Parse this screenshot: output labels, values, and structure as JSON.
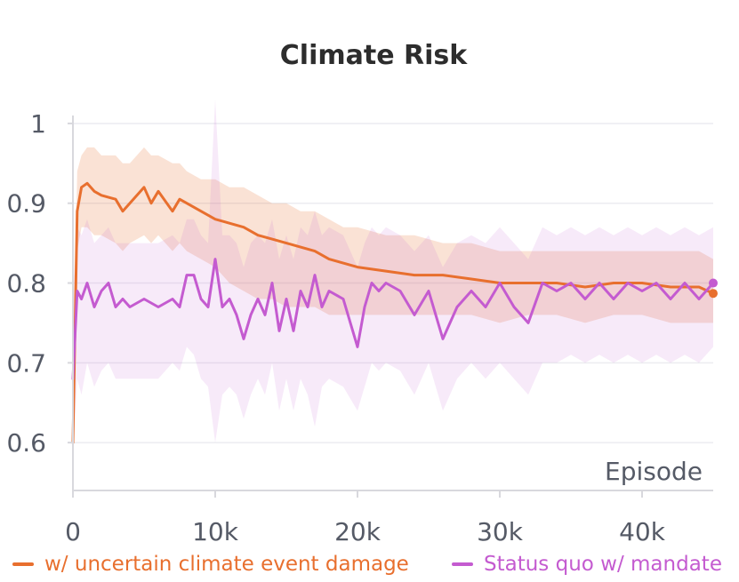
{
  "colors": {
    "series1": "#e86f2e",
    "series2": "#c45bd0",
    "grid": "#ececf0",
    "axis": "#d8d8dd"
  },
  "chart_data": {
    "type": "line",
    "title": "Climate Risk",
    "xlabel": "Episode",
    "ylabel": "",
    "xlim": [
      0,
      45000
    ],
    "ylim": [
      0.54,
      1.03
    ],
    "x_ticks": [
      0,
      10000,
      20000,
      30000,
      40000
    ],
    "x_tick_labels": [
      "0",
      "10k",
      "20k",
      "30k",
      "40k"
    ],
    "y_ticks": [
      0.6,
      0.7,
      0.8,
      0.9,
      1
    ],
    "y_tick_labels": [
      "0.6",
      "0.7",
      "0.8",
      "0.9",
      "1"
    ],
    "grid": true,
    "legend_position": "bottom",
    "series": [
      {
        "name": "w/ uncertain climate event damage",
        "color": "#e86f2e",
        "x": [
          0,
          300,
          600,
          1000,
          1500,
          2000,
          3000,
          3500,
          4000,
          5000,
          5500,
          6000,
          7000,
          7500,
          8000,
          9000,
          10000,
          11000,
          12000,
          13000,
          14000,
          15000,
          16000,
          17000,
          18000,
          19000,
          20000,
          22000,
          24000,
          26000,
          28000,
          30000,
          32000,
          34000,
          36000,
          38000,
          40000,
          42000,
          44000,
          45000
        ],
        "y": [
          0.6,
          0.89,
          0.92,
          0.925,
          0.915,
          0.91,
          0.905,
          0.89,
          0.9,
          0.92,
          0.9,
          0.915,
          0.89,
          0.905,
          0.9,
          0.89,
          0.88,
          0.875,
          0.87,
          0.86,
          0.855,
          0.85,
          0.845,
          0.84,
          0.83,
          0.825,
          0.82,
          0.815,
          0.81,
          0.81,
          0.805,
          0.8,
          0.8,
          0.8,
          0.795,
          0.8,
          0.8,
          0.795,
          0.795,
          0.787
        ],
        "band_lower": [
          0.56,
          0.84,
          0.87,
          0.87,
          0.86,
          0.86,
          0.85,
          0.84,
          0.85,
          0.86,
          0.85,
          0.86,
          0.84,
          0.85,
          0.84,
          0.83,
          0.82,
          0.8,
          0.79,
          0.78,
          0.78,
          0.77,
          0.77,
          0.77,
          0.76,
          0.76,
          0.76,
          0.76,
          0.76,
          0.76,
          0.76,
          0.75,
          0.76,
          0.76,
          0.75,
          0.76,
          0.76,
          0.75,
          0.75,
          0.75
        ],
        "band_upper": [
          0.67,
          0.94,
          0.96,
          0.97,
          0.97,
          0.96,
          0.96,
          0.95,
          0.95,
          0.97,
          0.96,
          0.96,
          0.95,
          0.95,
          0.94,
          0.93,
          0.93,
          0.92,
          0.92,
          0.91,
          0.9,
          0.9,
          0.89,
          0.89,
          0.88,
          0.87,
          0.87,
          0.86,
          0.86,
          0.85,
          0.85,
          0.84,
          0.84,
          0.84,
          0.84,
          0.84,
          0.84,
          0.84,
          0.84,
          0.83
        ]
      },
      {
        "name": "Status quo w/ mandate",
        "color": "#c45bd0",
        "x": [
          0,
          300,
          600,
          1000,
          1500,
          2000,
          2500,
          3000,
          3500,
          4000,
          5000,
          6000,
          7000,
          7500,
          8000,
          8500,
          9000,
          9500,
          10000,
          10500,
          11000,
          11500,
          12000,
          12500,
          13000,
          13500,
          14000,
          14500,
          15000,
          15500,
          16000,
          16500,
          17000,
          17500,
          18000,
          19000,
          20000,
          20500,
          21000,
          21500,
          22000,
          23000,
          24000,
          25000,
          26000,
          27000,
          28000,
          29000,
          30000,
          31000,
          32000,
          33000,
          34000,
          35000,
          36000,
          37000,
          38000,
          39000,
          40000,
          41000,
          42000,
          43000,
          44000,
          45000
        ],
        "y": [
          0.68,
          0.79,
          0.78,
          0.8,
          0.77,
          0.79,
          0.8,
          0.77,
          0.78,
          0.77,
          0.78,
          0.77,
          0.78,
          0.77,
          0.81,
          0.81,
          0.78,
          0.77,
          0.83,
          0.77,
          0.78,
          0.76,
          0.73,
          0.76,
          0.78,
          0.76,
          0.8,
          0.74,
          0.78,
          0.74,
          0.79,
          0.77,
          0.81,
          0.77,
          0.79,
          0.78,
          0.72,
          0.77,
          0.8,
          0.79,
          0.8,
          0.79,
          0.76,
          0.79,
          0.73,
          0.77,
          0.79,
          0.77,
          0.8,
          0.77,
          0.75,
          0.8,
          0.79,
          0.8,
          0.78,
          0.8,
          0.78,
          0.8,
          0.79,
          0.8,
          0.78,
          0.8,
          0.78,
          0.8
        ],
        "band_lower": [
          0.58,
          0.68,
          0.66,
          0.7,
          0.67,
          0.69,
          0.7,
          0.68,
          0.68,
          0.68,
          0.68,
          0.68,
          0.7,
          0.69,
          0.72,
          0.71,
          0.68,
          0.67,
          0.6,
          0.66,
          0.67,
          0.66,
          0.63,
          0.66,
          0.68,
          0.66,
          0.7,
          0.64,
          0.68,
          0.64,
          0.68,
          0.66,
          0.62,
          0.67,
          0.68,
          0.67,
          0.64,
          0.67,
          0.7,
          0.69,
          0.7,
          0.69,
          0.66,
          0.7,
          0.64,
          0.68,
          0.7,
          0.68,
          0.7,
          0.68,
          0.66,
          0.7,
          0.7,
          0.71,
          0.7,
          0.71,
          0.7,
          0.71,
          0.7,
          0.71,
          0.7,
          0.71,
          0.7,
          0.72
        ],
        "band_upper": [
          0.79,
          0.87,
          0.86,
          0.88,
          0.85,
          0.86,
          0.87,
          0.85,
          0.85,
          0.85,
          0.85,
          0.85,
          0.86,
          0.85,
          0.88,
          0.88,
          0.86,
          0.85,
          1.03,
          0.86,
          0.86,
          0.85,
          0.82,
          0.85,
          0.86,
          0.85,
          0.88,
          0.83,
          0.86,
          0.83,
          0.87,
          0.86,
          0.89,
          0.86,
          0.87,
          0.86,
          0.82,
          0.85,
          0.87,
          0.86,
          0.87,
          0.86,
          0.84,
          0.86,
          0.82,
          0.85,
          0.86,
          0.85,
          0.87,
          0.85,
          0.83,
          0.87,
          0.86,
          0.87,
          0.86,
          0.87,
          0.86,
          0.87,
          0.86,
          0.87,
          0.86,
          0.87,
          0.86,
          0.87
        ]
      }
    ]
  }
}
